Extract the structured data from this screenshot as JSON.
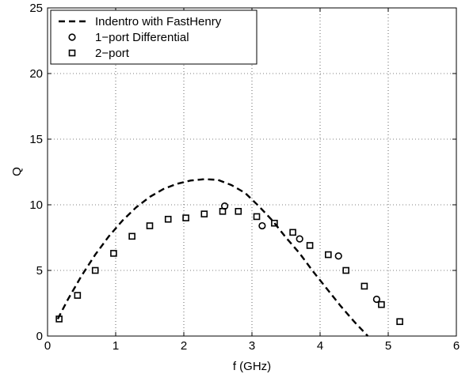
{
  "chart_data": {
    "type": "line",
    "title": "",
    "xlabel": "f (GHz)",
    "ylabel": "Q",
    "xlim": [
      0,
      6
    ],
    "ylim": [
      0,
      25
    ],
    "xticks": [
      0,
      1,
      2,
      3,
      4,
      5,
      6
    ],
    "yticks": [
      0,
      5,
      10,
      15,
      20,
      25
    ],
    "grid": true,
    "legend_position": "top-left",
    "series": [
      {
        "name": "Indentro with FastHenry",
        "style": "dashed-line",
        "color": "#000000",
        "x": [
          0.15,
          0.3,
          0.5,
          0.7,
          0.9,
          1.1,
          1.3,
          1.5,
          1.7,
          1.9,
          2.1,
          2.3,
          2.5,
          2.7,
          2.9,
          3.1,
          3.3,
          3.5,
          3.7,
          3.9,
          4.1,
          4.3,
          4.5,
          4.7
        ],
        "y": [
          1.3,
          2.8,
          4.6,
          6.2,
          7.6,
          8.8,
          9.8,
          10.6,
          11.2,
          11.6,
          11.85,
          11.95,
          11.9,
          11.5,
          10.9,
          9.9,
          8.8,
          7.5,
          6.3,
          4.9,
          3.6,
          2.3,
          1.1,
          0
        ]
      },
      {
        "name": "1−port Differential",
        "style": "circle-markers",
        "color": "#000000",
        "x": [
          2.6,
          3.15,
          3.7,
          4.27,
          4.83
        ],
        "y": [
          9.9,
          8.4,
          7.4,
          6.1,
          2.8
        ]
      },
      {
        "name": "2−port",
        "style": "square-markers",
        "color": "#000000",
        "x": [
          0.17,
          0.44,
          0.7,
          0.97,
          1.24,
          1.5,
          1.77,
          2.03,
          2.3,
          2.57,
          2.8,
          3.07,
          3.33,
          3.6,
          3.85,
          4.12,
          4.38,
          4.65,
          4.9,
          5.17
        ],
        "y": [
          1.3,
          3.1,
          5.0,
          6.3,
          7.6,
          8.4,
          8.9,
          9.0,
          9.3,
          9.5,
          9.5,
          9.1,
          8.6,
          7.9,
          6.9,
          6.2,
          5.0,
          3.8,
          2.4,
          1.1
        ]
      }
    ]
  }
}
